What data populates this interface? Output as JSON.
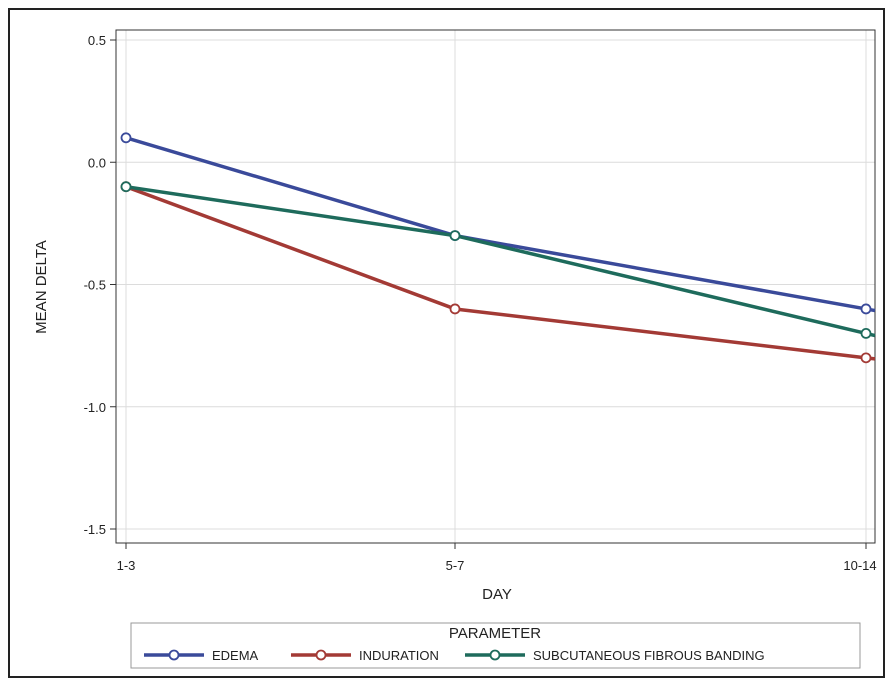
{
  "chart_data": {
    "type": "line",
    "categories": [
      "1-3",
      "5-7",
      "10-14"
    ],
    "xlabel": "DAY",
    "ylabel": "MEAN DELTA",
    "ylim": [
      -1.5,
      0.5
    ],
    "yticks": [
      0.5,
      0.0,
      -0.5,
      -1.0,
      -1.5
    ],
    "ytick_labels": [
      "0.5",
      "0.0",
      "-0.5",
      "-1.0",
      "-1.5"
    ],
    "grid": true,
    "legend": {
      "title": "PARAMETER",
      "position": "bottom"
    },
    "series": [
      {
        "name": "EDEMA",
        "values": [
          0.1,
          -0.3,
          -0.6
        ],
        "color": "#3a4a9a"
      },
      {
        "name": "INDURATION",
        "values": [
          -0.1,
          -0.6,
          -0.8
        ],
        "color": "#a33a35"
      },
      {
        "name": "SUBCUTANEOUS FIBROUS BANDING",
        "values": [
          -0.1,
          -0.3,
          -0.7
        ],
        "color": "#1e6b5c"
      }
    ]
  }
}
